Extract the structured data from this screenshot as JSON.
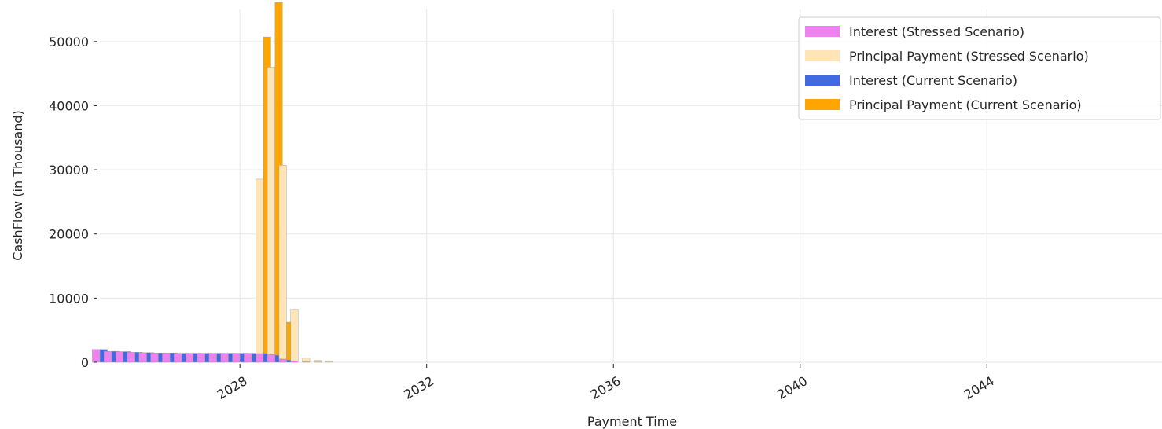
{
  "chart_data": {
    "type": "bar",
    "title": "",
    "xlabel": "Payment Time",
    "ylabel": "CashFlow (in Thousand)",
    "xlim": [
      "2025-01-01",
      "2047-10-01"
    ],
    "ylim": [
      0,
      55000
    ],
    "grid": true,
    "legend_position": "top-right",
    "x_ticks": [
      "2028",
      "2032",
      "2036",
      "2040",
      "2044"
    ],
    "y_ticks": [
      "0",
      "10000",
      "20000",
      "30000",
      "40000",
      "50000"
    ],
    "x": [
      "2025-01",
      "2025-04",
      "2025-07",
      "2025-10",
      "2026-01",
      "2026-04",
      "2026-07",
      "2026-10",
      "2027-01",
      "2027-04",
      "2027-07",
      "2027-10",
      "2028-01",
      "2028-04",
      "2028-07",
      "2028-10",
      "2029-01",
      "2029-04",
      "2029-07",
      "2029-10",
      "2030-01"
    ],
    "series": [
      {
        "name": "Interest (Stressed Scenario)",
        "color": "#ee82ee",
        "values": [
          2000,
          1700,
          1650,
          1550,
          1500,
          1450,
          1450,
          1400,
          1400,
          1400,
          1400,
          1400,
          1400,
          1400,
          1350,
          1200,
          500,
          150,
          60,
          40,
          30
        ]
      },
      {
        "name": "Principal Payment (Stressed Scenario)",
        "color": "#ffe4b5",
        "values": [
          0,
          0,
          0,
          0,
          0,
          0,
          0,
          0,
          0,
          0,
          0,
          0,
          0,
          0,
          27200,
          44800,
          30200,
          8100,
          600,
          250,
          200
        ]
      },
      {
        "name": "Interest (Current Scenario)",
        "color": "#4169e1",
        "values": [
          2000,
          1700,
          1650,
          1550,
          1500,
          1450,
          1450,
          1400,
          1400,
          1400,
          1400,
          1400,
          1400,
          1400,
          1400,
          1100,
          350,
          0,
          0,
          0,
          0
        ]
      },
      {
        "name": "Principal Payment (Current Scenario)",
        "color": "#ffa500",
        "values": [
          0,
          0,
          0,
          0,
          0,
          0,
          0,
          0,
          0,
          0,
          0,
          0,
          0,
          0,
          49300,
          55000,
          5900,
          0,
          0,
          0,
          0
        ]
      }
    ]
  }
}
